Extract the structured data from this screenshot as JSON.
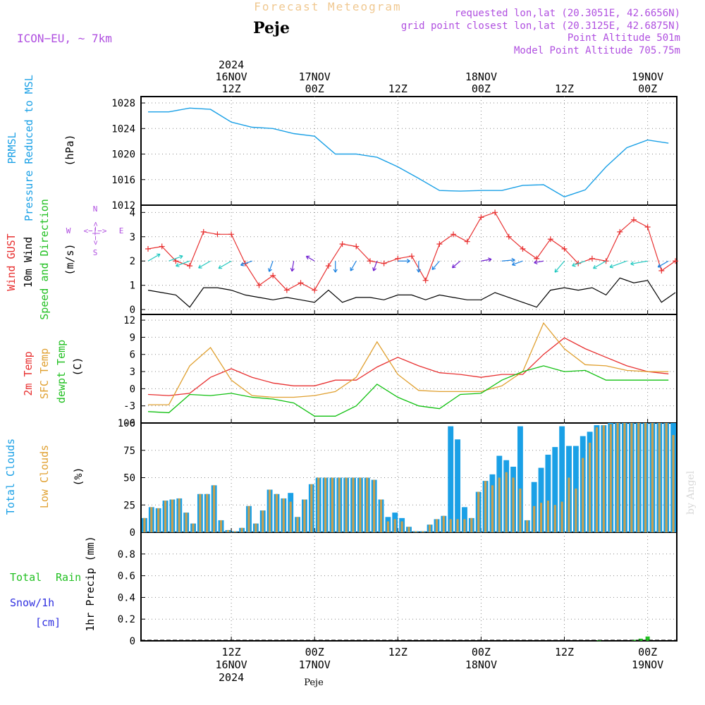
{
  "header": {
    "title": "Forecast Meteogram",
    "station": "Peje",
    "model": "ICON−EU, ~ 7km",
    "requested": "requested lon,lat (20.3051E, 42.6656N)",
    "grid_point": "grid point closest lon,lat (20.3125E, 42.6875N)",
    "point_alt": "Point Altitude 501m",
    "model_alt": "Model Point Altitude 705.75m",
    "footer_station": "Peje",
    "watermark": "by Angel"
  },
  "time_axis": {
    "top_labels": [
      {
        "hour": 12,
        "lines": [
          "2024",
          "16NOV",
          "12Z"
        ]
      },
      {
        "hour": 24,
        "lines": [
          "17NOV",
          "00Z"
        ]
      },
      {
        "hour": 36,
        "lines": [
          "12Z"
        ]
      },
      {
        "hour": 48,
        "lines": [
          "18NOV",
          "00Z"
        ]
      },
      {
        "hour": 60,
        "lines": [
          "12Z"
        ]
      },
      {
        "hour": 72,
        "lines": [
          "19NOV",
          "00Z"
        ]
      }
    ],
    "bottom_labels": [
      {
        "hour": 12,
        "lines": [
          "12Z",
          "16NOV",
          "2024"
        ]
      },
      {
        "hour": 24,
        "lines": [
          "00Z",
          "17NOV"
        ]
      },
      {
        "hour": 36,
        "lines": [
          "12Z"
        ]
      },
      {
        "hour": 48,
        "lines": [
          "00Z",
          "18NOV"
        ]
      },
      {
        "hour": 60,
        "lines": [
          "12Z"
        ]
      },
      {
        "hour": 72,
        "lines": [
          "00Z",
          "19NOV"
        ]
      }
    ]
  },
  "panel_labels": {
    "prmsl": {
      "line1": "PRMSL",
      "line2": "Pressure Reduced to MSL",
      "unit": "(hPa)"
    },
    "wind": {
      "gust": "Wind GUST",
      "wind10": "10m Wind",
      "speed_dir": "Speed and Direction",
      "unit": "(m/s)",
      "compass_n": "N",
      "compass_s": "S",
      "compass_w": "W",
      "compass_e": "E",
      "compass_ew": "<−|−>",
      "compass_ns": "<−|−>"
    },
    "temp": {
      "t2m": "2m Temp",
      "sfc": "SFC Temp",
      "dew": "dewpt Temp",
      "unit": "(C)"
    },
    "clouds": {
      "total": "Total Clouds",
      "low": "Low Clouds",
      "unit": "(%)"
    },
    "precip": {
      "rain1": "Total",
      "rain2": "Rain",
      "snow": "Snow/1h",
      "snow_unit": "[cm]",
      "unit": "1hr Precip (mm)"
    }
  },
  "colors": {
    "pressure": "#1aa0e6",
    "gust": "#e83030",
    "wind10": "#000000",
    "t2m": "#e83030",
    "sfc": "#e0a030",
    "dew": "#10c010",
    "total_cloud": "#1aa0e6",
    "low_cloud": "#c8a050",
    "rain": "#22c022",
    "snow": "#3030e0",
    "title": "#f0c890",
    "info": "#b050e0",
    "grid": "#888888"
  },
  "chart_data": [
    {
      "type": "line",
      "title": "PRMSL Pressure Reduced to MSL",
      "ylabel": "(hPa)",
      "ylim": [
        1012,
        1029
      ],
      "yticks": [
        1012,
        1016,
        1020,
        1024,
        1028
      ],
      "x_hours": [
        0,
        3,
        6,
        9,
        12,
        15,
        18,
        21,
        24,
        27,
        30,
        33,
        36,
        39,
        42,
        45,
        48,
        51,
        54,
        57,
        60,
        63,
        66,
        69,
        72,
        75
      ],
      "series": [
        {
          "name": "PRMSL",
          "values": [
            1026.6,
            1026.6,
            1027.2,
            1027.0,
            1025.0,
            1024.2,
            1024.0,
            1023.2,
            1022.8,
            1020.0,
            1020.0,
            1019.5,
            1018.0,
            1016.2,
            1014.3,
            1014.2,
            1014.3,
            1014.3,
            1015.1,
            1015.2,
            1013.3,
            1014.4,
            1018.0,
            1021.0,
            1022.2,
            1021.7
          ]
        }
      ]
    },
    {
      "type": "line",
      "title": "Wind GUST / 10m Wind Speed and Direction",
      "ylabel": "(m/s)",
      "ylim": [
        -0.2,
        4.3
      ],
      "yticks": [
        0,
        1,
        2,
        3,
        4
      ],
      "x_hours": [
        0,
        2,
        4,
        6,
        8,
        10,
        12,
        14,
        16,
        18,
        20,
        22,
        24,
        26,
        28,
        30,
        32,
        34,
        36,
        38,
        40,
        42,
        44,
        46,
        48,
        50,
        52,
        54,
        56,
        58,
        60,
        62,
        64,
        66,
        68,
        70,
        72,
        74,
        76
      ],
      "series": [
        {
          "name": "Wind GUST",
          "values": [
            2.5,
            2.6,
            2.0,
            1.8,
            3.2,
            3.1,
            3.1,
            1.9,
            1.0,
            1.4,
            0.8,
            1.1,
            0.8,
            1.8,
            2.7,
            2.6,
            2.0,
            1.9,
            2.1,
            2.2,
            1.2,
            2.7,
            3.1,
            2.8,
            3.8,
            4.0,
            3.0,
            2.5,
            2.1,
            2.9,
            2.5,
            1.9,
            2.1,
            2.0,
            3.2,
            3.7,
            3.4,
            1.6,
            2.0
          ]
        },
        {
          "name": "10m Wind",
          "values": [
            0.8,
            0.7,
            0.6,
            0.1,
            0.9,
            0.9,
            0.8,
            0.6,
            0.5,
            0.4,
            0.5,
            0.4,
            0.3,
            0.8,
            0.3,
            0.5,
            0.5,
            0.4,
            0.6,
            0.6,
            0.4,
            0.6,
            0.5,
            0.4,
            0.4,
            0.7,
            0.5,
            0.3,
            0.1,
            0.8,
            0.9,
            0.8,
            0.9,
            0.6,
            1.3,
            1.1,
            1.2,
            0.3,
            0.7
          ]
        }
      ],
      "wind_barbs": {
        "hours": [
          0,
          3,
          6,
          9,
          12,
          15,
          18,
          21,
          24,
          27,
          30,
          33,
          36,
          39,
          42,
          45,
          48,
          51,
          54,
          57,
          60,
          63,
          66,
          69,
          72,
          75
        ],
        "direction_deg": [
          60,
          70,
          250,
          240,
          240,
          250,
          200,
          190,
          300,
          180,
          210,
          200,
          90,
          180,
          220,
          230,
          80,
          85,
          250,
          260,
          220,
          250,
          240,
          250,
          260,
          240
        ],
        "speed": [
          0.8,
          0.9,
          0.9,
          0.8,
          0.9,
          0.6,
          0.5,
          0.4,
          0.3,
          0.5,
          0.5,
          0.4,
          0.6,
          0.5,
          0.5,
          0.4,
          0.4,
          0.7,
          0.5,
          0.3,
          0.9,
          0.8,
          0.9,
          1.3,
          1.2,
          0.6
        ]
      }
    },
    {
      "type": "line",
      "title": "2m Temp / SFC Temp / dewpt Temp",
      "ylabel": "(C)",
      "ylim": [
        -6,
        13
      ],
      "yticks": [
        -6,
        -3,
        0,
        3,
        6,
        9,
        12
      ],
      "x_hours": [
        0,
        3,
        6,
        9,
        12,
        15,
        18,
        21,
        24,
        27,
        30,
        33,
        36,
        39,
        42,
        45,
        48,
        51,
        54,
        57,
        60,
        63,
        66,
        69,
        72,
        75
      ],
      "series": [
        {
          "name": "2m Temp",
          "values": [
            -1.0,
            -1.2,
            -0.8,
            2.0,
            3.5,
            2.0,
            1.0,
            0.5,
            0.5,
            1.5,
            1.5,
            3.8,
            5.5,
            4.0,
            2.8,
            2.5,
            2.0,
            2.5,
            2.5,
            6.0,
            8.9,
            7.0,
            5.5,
            4.0,
            3.0,
            2.6
          ]
        },
        {
          "name": "SFC Temp",
          "values": [
            -2.8,
            -2.8,
            4.0,
            7.2,
            1.5,
            -1.2,
            -1.5,
            -1.5,
            -1.2,
            -0.5,
            2.0,
            8.2,
            2.5,
            -0.3,
            -0.5,
            -0.5,
            -0.5,
            0.5,
            3.0,
            11.5,
            7.0,
            4.2,
            4.0,
            3.2,
            3.0,
            3.0
          ]
        },
        {
          "name": "dewpt Temp",
          "values": [
            -4.0,
            -4.2,
            -1.0,
            -1.2,
            -0.8,
            -1.5,
            -1.8,
            -2.5,
            -4.8,
            -4.8,
            -3.0,
            0.8,
            -1.5,
            -3.0,
            -3.5,
            -1.0,
            -0.8,
            1.5,
            3.0,
            4.0,
            3.0,
            3.2,
            1.5,
            1.5,
            1.5,
            1.5
          ]
        }
      ]
    },
    {
      "type": "bar",
      "title": "Total Clouds / Low Clouds",
      "ylabel": "(%)",
      "ylim": [
        0,
        100
      ],
      "yticks": [
        0,
        25,
        50,
        75,
        100
      ],
      "x_hours_start": 0,
      "step_hours": 1,
      "series": [
        {
          "name": "Total Clouds",
          "values": [
            13,
            23,
            22,
            29,
            30,
            31,
            18,
            8,
            35,
            35,
            43,
            11,
            2,
            1,
            4,
            24,
            8,
            20,
            39,
            35,
            31,
            36,
            14,
            30,
            44,
            50,
            50,
            50,
            50,
            50,
            50,
            50,
            50,
            48,
            30,
            14,
            18,
            13,
            5,
            1,
            1,
            7,
            12,
            15,
            97,
            85,
            23,
            13,
            37,
            47,
            53,
            70,
            66,
            60,
            97,
            11,
            46,
            59,
            71,
            78,
            97,
            79,
            79,
            88,
            92,
            98,
            98,
            100,
            100,
            100,
            100,
            100,
            100,
            100,
            100,
            100,
            100
          ]
        },
        {
          "name": "Low Clouds",
          "values": [
            13,
            23,
            22,
            29,
            30,
            31,
            18,
            8,
            35,
            35,
            43,
            11,
            2,
            1,
            4,
            24,
            8,
            20,
            39,
            35,
            31,
            28,
            14,
            30,
            44,
            50,
            50,
            50,
            50,
            50,
            50,
            50,
            50,
            48,
            30,
            10,
            12,
            10,
            5,
            1,
            1,
            7,
            12,
            15,
            12,
            12,
            12,
            13,
            37,
            47,
            43,
            50,
            55,
            50,
            40,
            11,
            24,
            27,
            29,
            25,
            28,
            50,
            40,
            68,
            82,
            96,
            98,
            99,
            100,
            100,
            100,
            100,
            100,
            100,
            100,
            100,
            89
          ]
        }
      ]
    },
    {
      "type": "bar",
      "title": "1hr Precip",
      "ylabel": "1hr Precip (mm)",
      "ylim": [
        0,
        1.0
      ],
      "yticks": [
        0,
        0.2,
        0.4,
        0.6,
        0.8
      ],
      "series": [
        {
          "name": "Total Rain",
          "hours": [
            65,
            70,
            71,
            72
          ],
          "values": [
            0.005,
            0.01,
            0.02,
            0.04
          ]
        },
        {
          "name": "Snow/1h",
          "hours": [],
          "values": []
        }
      ]
    }
  ]
}
